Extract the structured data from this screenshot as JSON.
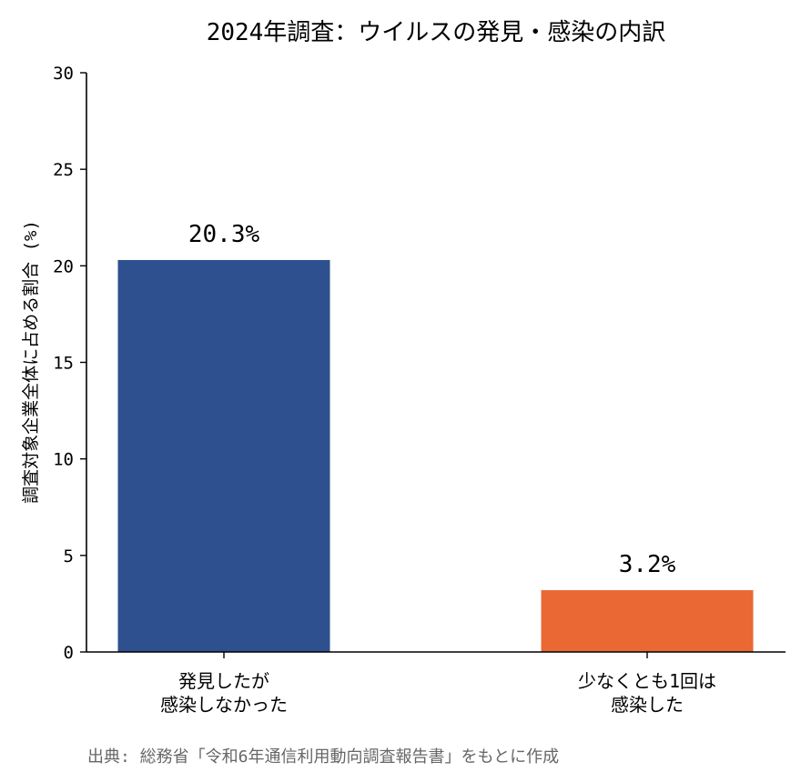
{
  "chart_data": {
    "type": "bar",
    "title": "2024年調査：ウイルスの発見・感染の内訳",
    "ylabel": "調査対象企業全体に占める割合 (%)",
    "xlabel": "",
    "ylim": [
      0,
      30
    ],
    "yticks": [
      0,
      5,
      10,
      15,
      20,
      25,
      30
    ],
    "grid": false,
    "categories": [
      [
        "発見したが",
        "感染しなかった"
      ],
      [
        "少なくとも1回は",
        "感染した"
      ]
    ],
    "values": [
      20.3,
      3.2
    ],
    "data_labels": [
      "20.3%",
      "3.2%"
    ],
    "colors": [
      "#2e508e",
      "#e96834"
    ]
  },
  "source": "出典: 総務省「令和6年通信利用動向調査報告書」をもとに作成"
}
